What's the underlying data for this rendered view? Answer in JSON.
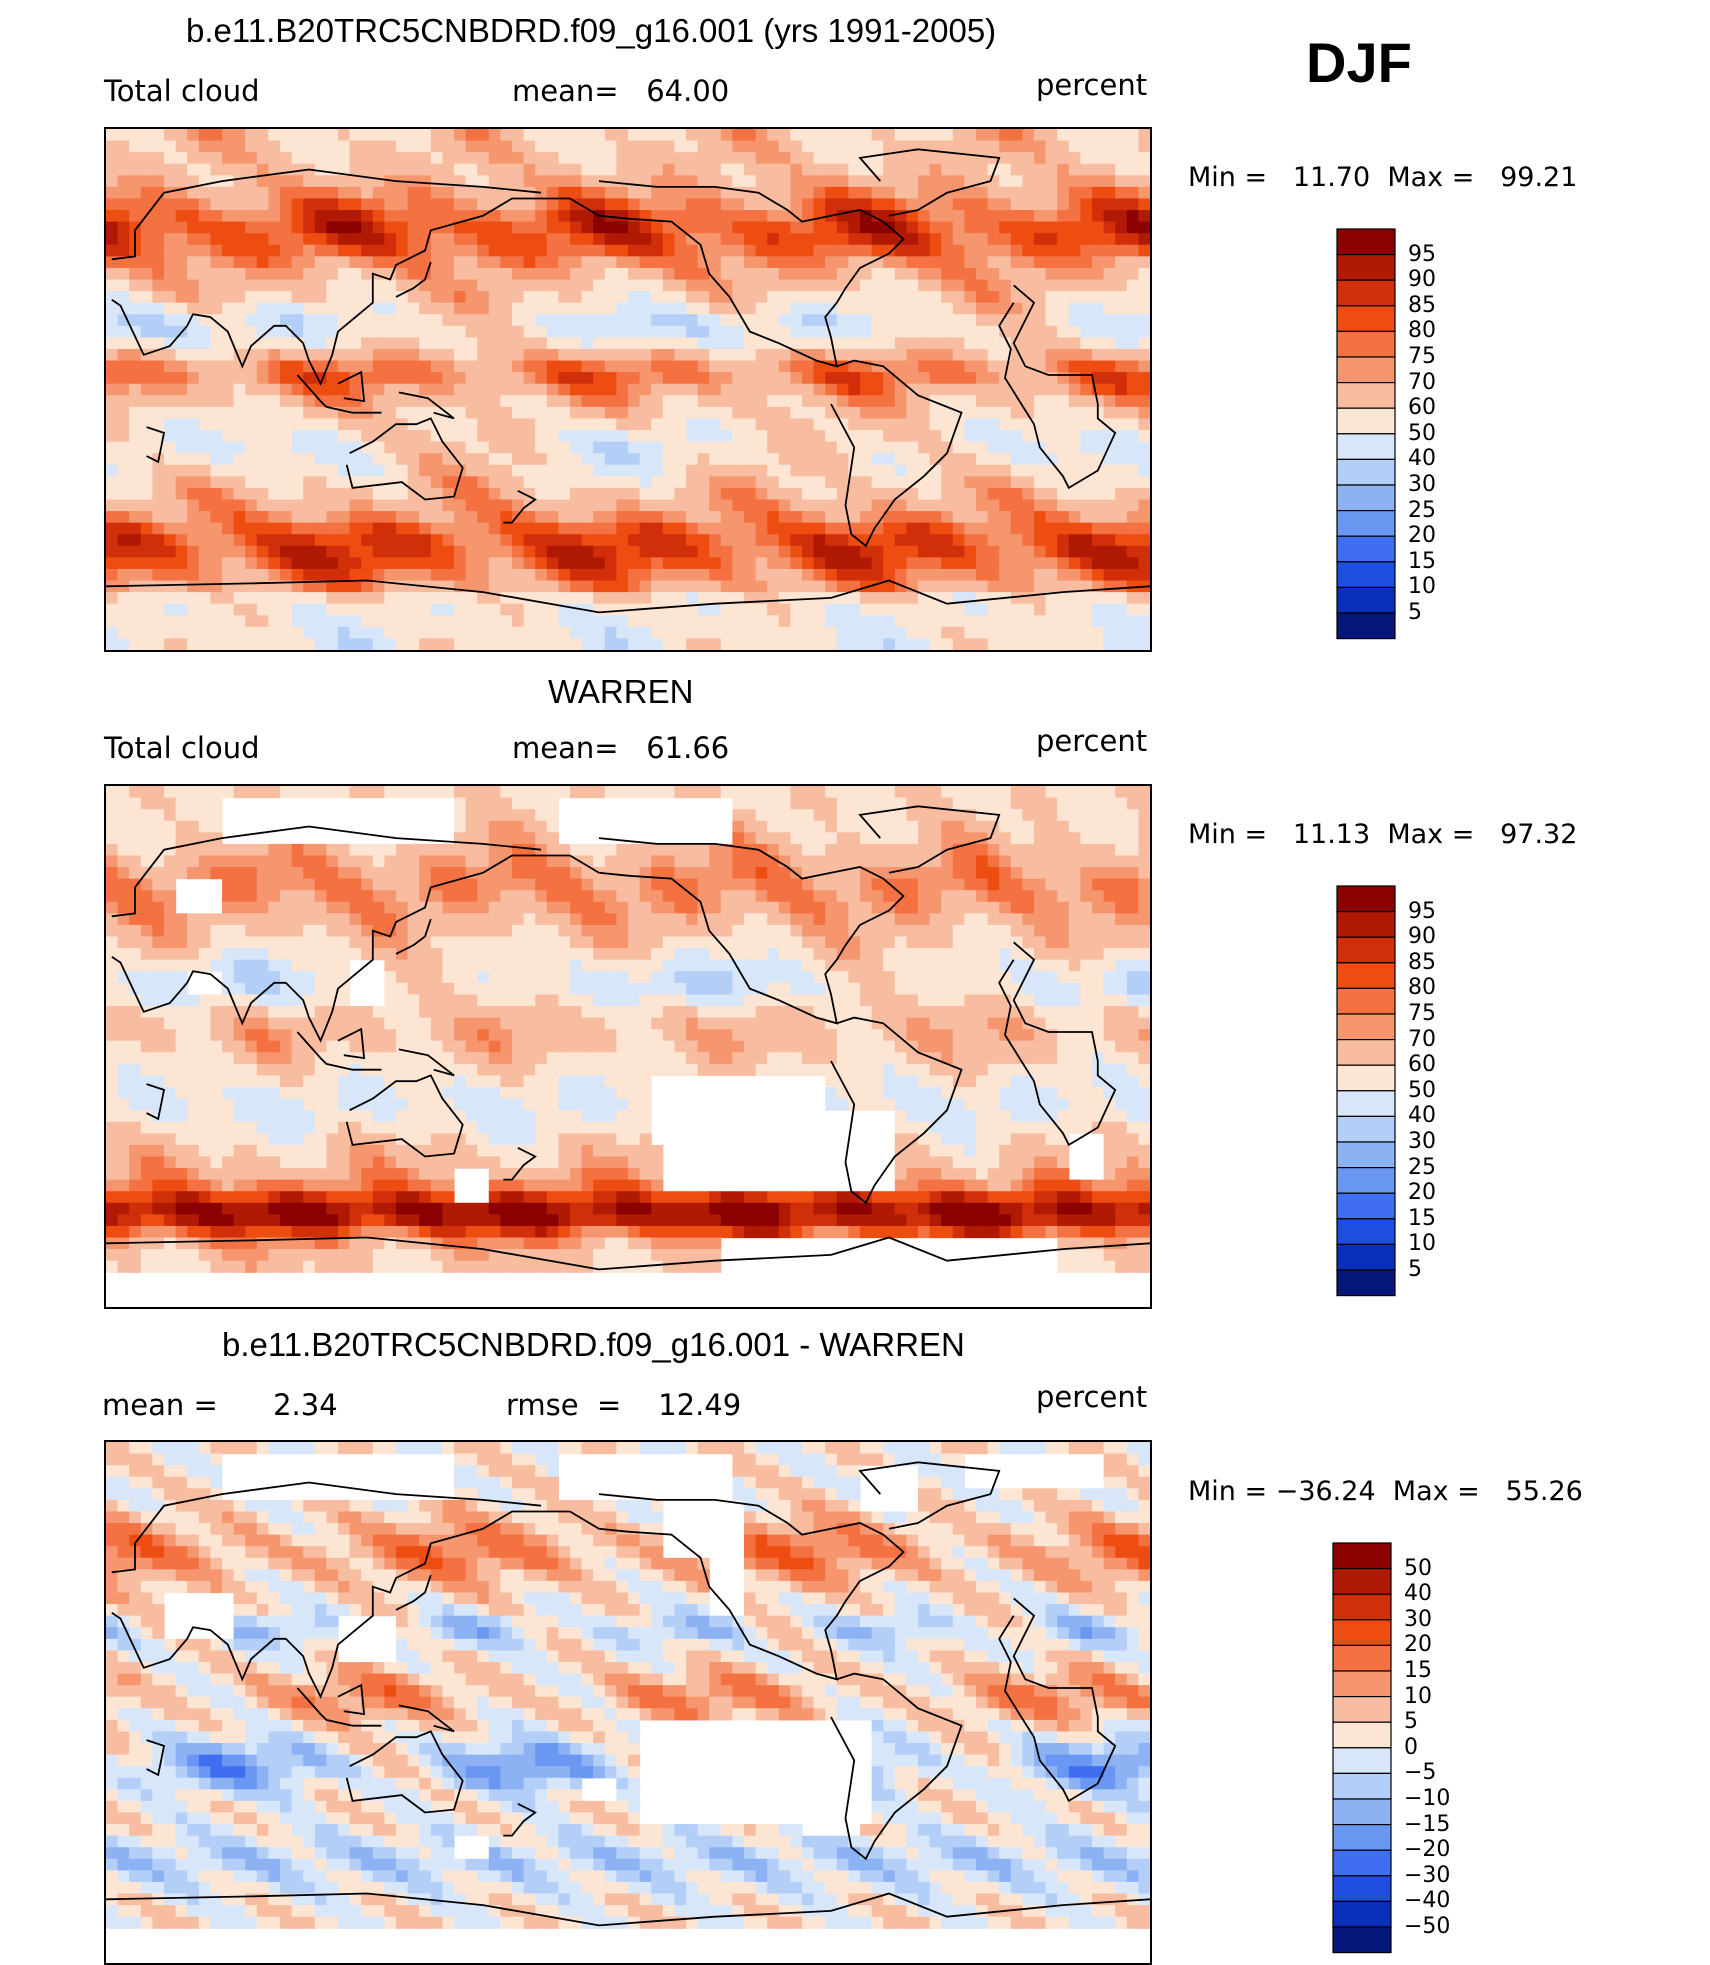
{
  "season": "DJF",
  "panels": [
    {
      "id": "model",
      "title": "b.e11.B20TRC5CNBDRD.f09_g16.001 (yrs 1991-2005)",
      "left": "Total cloud",
      "center": "mean=   64.00",
      "right": "percent",
      "minmax": "Min =   11.70  Max =   99.21",
      "colorbar": {
        "labels": [
          "95",
          "90",
          "85",
          "80",
          "75",
          "70",
          "60",
          "50",
          "40",
          "30",
          "25",
          "20",
          "15",
          "10",
          "5"
        ],
        "colors": [
          "#8b0000",
          "#b01a04",
          "#d12f0a",
          "#ee4d12",
          "#f47142",
          "#f5966f",
          "#f8bda0",
          "#fde5d4",
          "#d8e6fa",
          "#b3cff7",
          "#8db2f4",
          "#6a97f2",
          "#3f6ff0",
          "#1d4ee0",
          "#0a2fb8",
          "#06177a"
        ]
      },
      "map_style": "model"
    },
    {
      "id": "obs",
      "title": "WARREN",
      "left": "Total cloud",
      "center": "mean=   61.66",
      "right": "percent",
      "minmax": "Min =   11.13  Max =   97.32",
      "colorbar": {
        "labels": [
          "95",
          "90",
          "85",
          "80",
          "75",
          "70",
          "60",
          "50",
          "40",
          "30",
          "25",
          "20",
          "15",
          "10",
          "5"
        ],
        "colors": [
          "#8b0000",
          "#b01a04",
          "#d12f0a",
          "#ee4d12",
          "#f47142",
          "#f5966f",
          "#f8bda0",
          "#fde5d4",
          "#d8e6fa",
          "#b3cff7",
          "#8db2f4",
          "#6a97f2",
          "#3f6ff0",
          "#1d4ee0",
          "#0a2fb8",
          "#06177a"
        ]
      },
      "map_style": "obs"
    },
    {
      "id": "diff",
      "title": "b.e11.B20TRC5CNBDRD.f09_g16.001 - WARREN",
      "left": "mean =      2.34",
      "center": "rmse  =    12.49",
      "right": "percent",
      "minmax": "Min = −36.24  Max =   55.26",
      "colorbar": {
        "labels": [
          "50",
          "40",
          "30",
          "20",
          "15",
          "10",
          "5",
          "0",
          "−5",
          "−10",
          "−15",
          "−20",
          "−30",
          "−40",
          "−50"
        ],
        "colors": [
          "#8b0000",
          "#b01a04",
          "#d12f0a",
          "#ee4d12",
          "#f47142",
          "#f5966f",
          "#f8bda0",
          "#fde5d4",
          "#d8e6fa",
          "#b3cff7",
          "#8db2f4",
          "#6a97f2",
          "#3f6ff0",
          "#1d4ee0",
          "#0a2fb8",
          "#06177a"
        ]
      },
      "map_style": "diff"
    }
  ]
}
